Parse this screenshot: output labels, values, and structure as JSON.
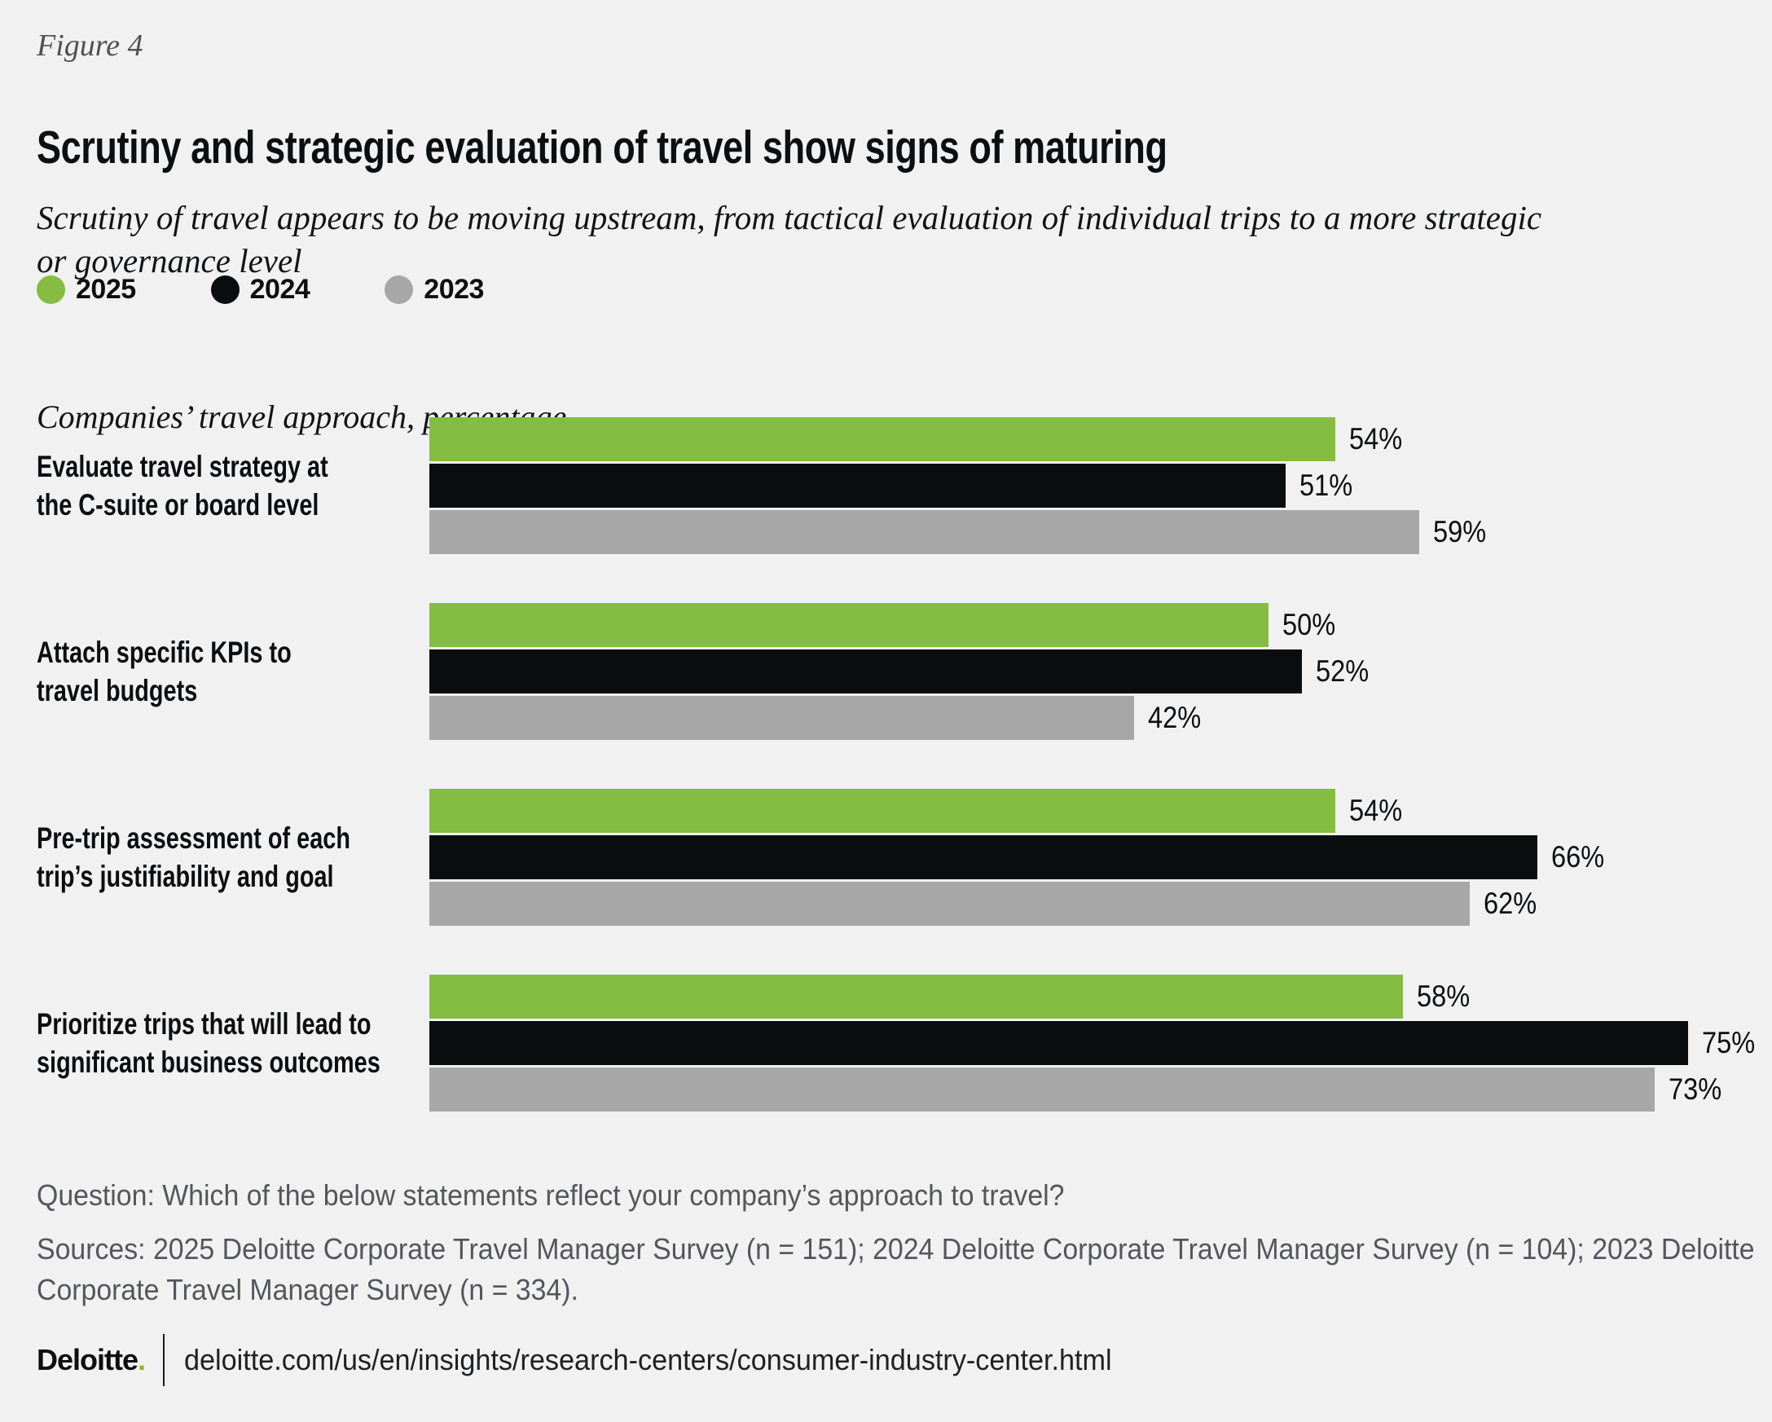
{
  "page": {
    "background": "#f1f1f2"
  },
  "header": {
    "figure_label": "Figure 4",
    "title": "Scrutiny and strategic evaluation of travel show signs of maturing",
    "subtitle": "Scrutiny of travel appears to be moving upstream, from tactical evaluation of individual trips to a more strategic\nor governance level"
  },
  "legend": [
    {
      "label": "2025",
      "color": "#84bd41"
    },
    {
      "label": "2024",
      "color": "#0a0d0e"
    },
    {
      "label": "2023",
      "color": "#a7a7a8"
    }
  ],
  "chart_data": {
    "type": "bar",
    "orientation": "horizontal",
    "title": "Companies’ travel approach, percentage",
    "categories": [
      "Evaluate travel strategy at\nthe C-suite or board level",
      "Attach specific KPIs to\ntravel budgets",
      "Pre-trip assessment of each\ntrip’s justifiability and goal",
      "Prioritize trips that will lead to\nsignificant business outcomes"
    ],
    "series": [
      {
        "name": "2025",
        "color": "#84bd41",
        "values": [
          54,
          50,
          54,
          58
        ]
      },
      {
        "name": "2024",
        "color": "#0a0d0e",
        "values": [
          51,
          52,
          66,
          75
        ]
      },
      {
        "name": "2023",
        "color": "#a7a7a8",
        "values": [
          59,
          42,
          62,
          73
        ]
      }
    ],
    "value_suffix": "%",
    "xlim": [
      0,
      80
    ],
    "grid": false,
    "legend_position": "top-left"
  },
  "footer": {
    "question": "Question: Which of the below statements reflect your company’s approach to travel?",
    "sources": "Sources: 2025 Deloitte Corporate Travel Manager Survey (n = 151); 2024 Deloitte Corporate Travel Manager Survey (n = 104); 2023 Deloitte\nCorporate Travel Manager Survey (n = 334).",
    "logo_text": "Deloitte",
    "logo_period": ".",
    "url": "deloitte.com/us/en/insights/research-centers/consumer-industry-center.html"
  }
}
